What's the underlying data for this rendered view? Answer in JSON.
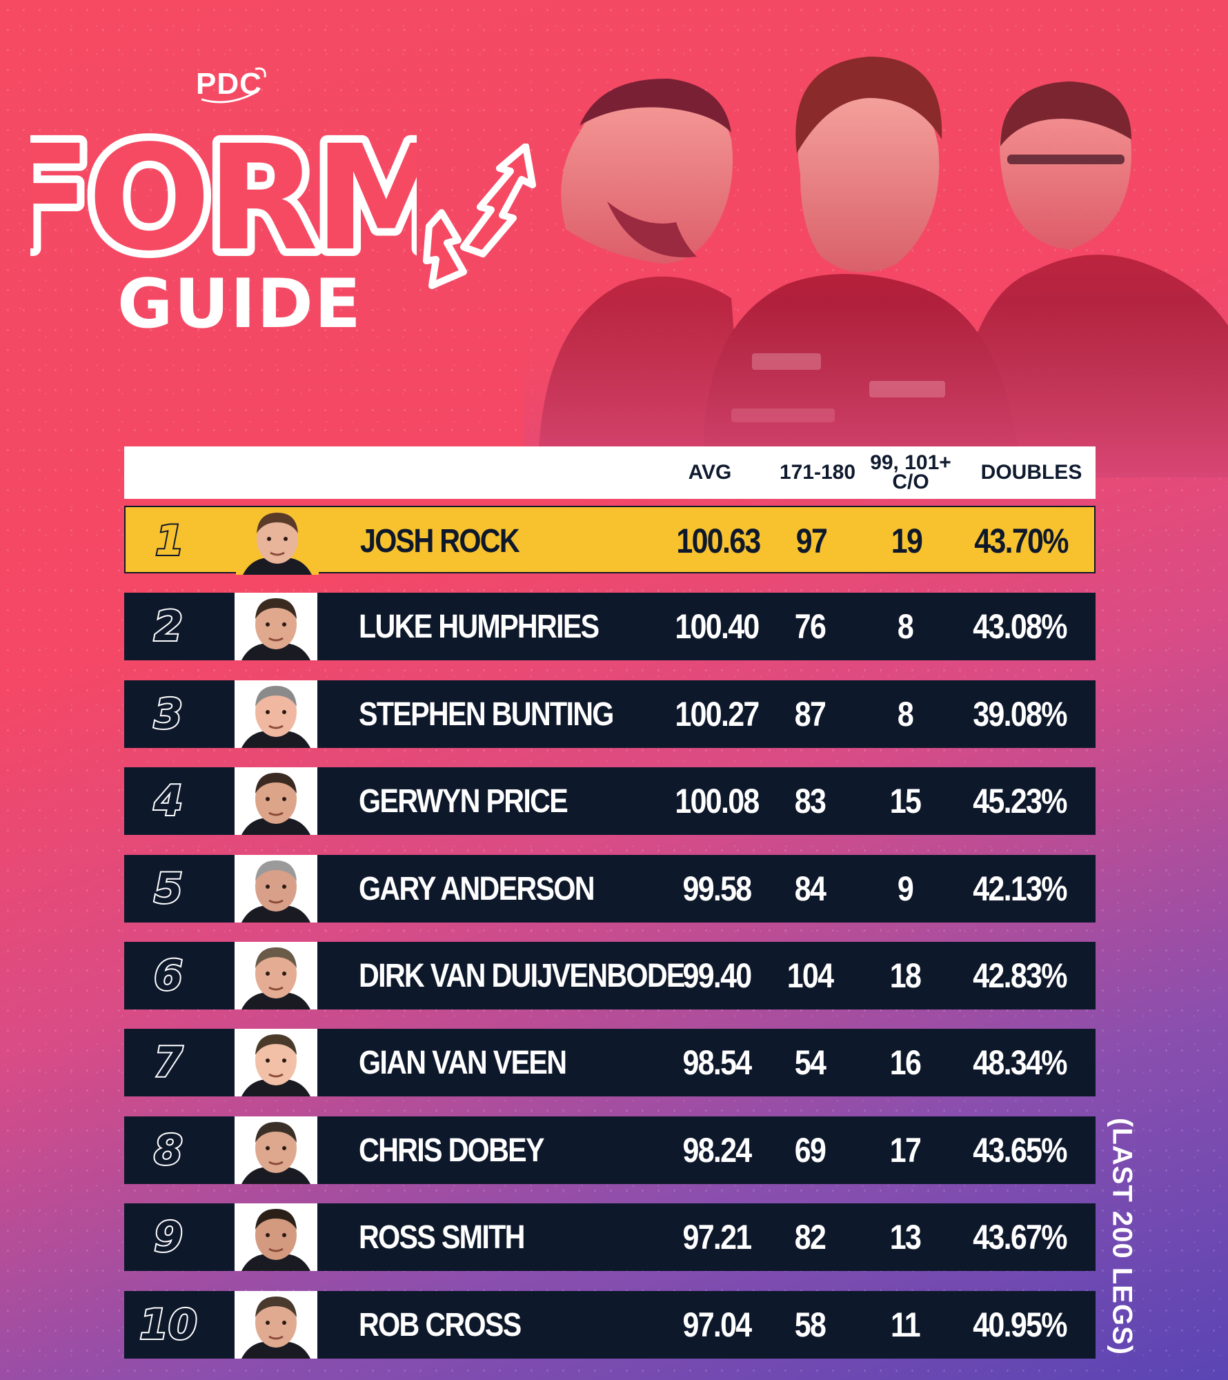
{
  "brand": {
    "logo_text": "PDC"
  },
  "title": {
    "line1": "FORM",
    "line2": "GUIDE"
  },
  "columns": {
    "avg": "AVG",
    "s180": "171-180",
    "co_line1": "99, 101+",
    "co_line2": "C/O",
    "doubles": "DOUBLES"
  },
  "rows": [
    {
      "rank": "1",
      "name": "JOSH ROCK",
      "avg": "100.63",
      "s180": "97",
      "co": "19",
      "doubles": "43.70%"
    },
    {
      "rank": "2",
      "name": "LUKE HUMPHRIES",
      "avg": "100.40",
      "s180": "76",
      "co": "8",
      "doubles": "43.08%"
    },
    {
      "rank": "3",
      "name": "STEPHEN BUNTING",
      "avg": "100.27",
      "s180": "87",
      "co": "8",
      "doubles": "39.08%"
    },
    {
      "rank": "4",
      "name": "GERWYN PRICE",
      "avg": "100.08",
      "s180": "83",
      "co": "15",
      "doubles": "45.23%"
    },
    {
      "rank": "5",
      "name": "GARY ANDERSON",
      "avg": "99.58",
      "s180": "84",
      "co": "9",
      "doubles": "42.13%"
    },
    {
      "rank": "6",
      "name": "DIRK VAN DUIJVENBODE",
      "avg": "99.40",
      "s180": "104",
      "co": "18",
      "doubles": "42.83%"
    },
    {
      "rank": "7",
      "name": "GIAN VAN VEEN",
      "avg": "98.54",
      "s180": "54",
      "co": "16",
      "doubles": "48.34%"
    },
    {
      "rank": "8",
      "name": "CHRIS DOBEY",
      "avg": "98.24",
      "s180": "69",
      "co": "17",
      "doubles": "43.65%"
    },
    {
      "rank": "9",
      "name": "ROSS SMITH",
      "avg": "97.21",
      "s180": "82",
      "co": "13",
      "doubles": "43.67%"
    },
    {
      "rank": "10",
      "name": "ROB CROSS",
      "avg": "97.04",
      "s180": "58",
      "co": "11",
      "doubles": "40.95%"
    }
  ],
  "footnote": "(LAST 200 LEGS)",
  "colors": {
    "highlight": "#f8c22f",
    "row_bg": "#0e182b",
    "header_bg": "#ffffff"
  },
  "icons": [
    "pdc-logo-icon",
    "up-down-arrows-icon",
    "player-photo-icon"
  ]
}
